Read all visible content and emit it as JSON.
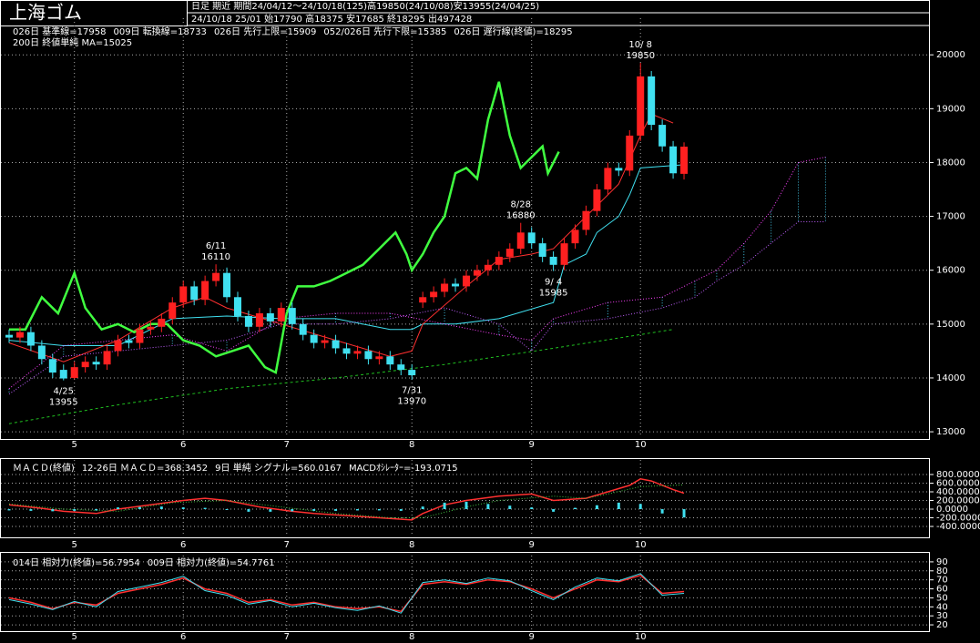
{
  "chart_data": [
    {
      "type": "candlestick",
      "title": "上海ゴム",
      "subtitle": [
        "日足 期近 期間24/04/12～24/10/18(125)高19850(24/10/08)安13955(24/04/25)",
        "24/10/18 25/01 始17790 高18375 安17685 終18295 出497428"
      ],
      "x": [
        0,
        2,
        4,
        6,
        8,
        10,
        12,
        14,
        16,
        18,
        20,
        22,
        24,
        26,
        28,
        30,
        32,
        34,
        36,
        38,
        40,
        42,
        44,
        46,
        48,
        50,
        52,
        54,
        56,
        58,
        60,
        62,
        64,
        66,
        68,
        70,
        72,
        74,
        76,
        78,
        80,
        82,
        84,
        86,
        88,
        90,
        92,
        94,
        96,
        98,
        100,
        102,
        104,
        106,
        108,
        110,
        112,
        114,
        116,
        118,
        120,
        122,
        124
      ],
      "open": [
        14800,
        14750,
        14850,
        14600,
        14350,
        14150,
        14000,
        14200,
        14300,
        14250,
        14500,
        14700,
        14650,
        14900,
        14950,
        15100,
        15400,
        15700,
        15450,
        15800,
        15950,
        15500,
        15150,
        14950,
        15200,
        15050,
        15300,
        15000,
        14800,
        14650,
        14700,
        14550,
        14450,
        14500,
        14350,
        14400,
        14250,
        14150,
        15400,
        15500,
        15600,
        15750,
        15700,
        15900,
        16000,
        16100,
        16250,
        16400,
        16700,
        16500,
        16250,
        16100,
        16500,
        16750,
        17100,
        17500,
        17900,
        17850,
        18500,
        19600,
        18700,
        18300,
        17790
      ],
      "high": [
        14900,
        14950,
        14950,
        14700,
        14450,
        14250,
        14300,
        14400,
        14400,
        14600,
        14800,
        14800,
        15000,
        15050,
        15200,
        15500,
        15800,
        15800,
        15900,
        16110,
        16050,
        15600,
        15250,
        15300,
        15300,
        15400,
        15400,
        15100,
        14900,
        14800,
        14800,
        14650,
        14600,
        14600,
        14500,
        14500,
        14350,
        14250,
        15600,
        15700,
        15850,
        15850,
        16000,
        16100,
        16200,
        16350,
        16500,
        16880,
        16800,
        16600,
        16350,
        16600,
        16850,
        17200,
        17600,
        18000,
        18000,
        18600,
        19850,
        19700,
        18800,
        18400,
        18375
      ],
      "low": [
        14650,
        14650,
        14500,
        14250,
        14000,
        13955,
        13980,
        14100,
        14150,
        14150,
        14400,
        14550,
        14550,
        14800,
        14850,
        15000,
        15300,
        15350,
        15350,
        15700,
        15400,
        15050,
        14850,
        14850,
        14950,
        14950,
        14900,
        14700,
        14550,
        14550,
        14450,
        14350,
        14350,
        14250,
        14250,
        14150,
        14050,
        13970,
        15300,
        15400,
        15500,
        15600,
        15600,
        15800,
        15900,
        16000,
        16150,
        16300,
        16400,
        16150,
        15985,
        16000,
        16400,
        16650,
        17000,
        17400,
        17750,
        17750,
        18400,
        18600,
        18200,
        17700,
        17685
      ],
      "close": [
        14750,
        14850,
        14600,
        14350,
        14100,
        13990,
        14200,
        14300,
        14250,
        14500,
        14700,
        14650,
        14900,
        14950,
        15100,
        15400,
        15700,
        15450,
        15800,
        15950,
        15500,
        15150,
        14950,
        15200,
        15050,
        15300,
        15000,
        14800,
        14650,
        14700,
        14550,
        14450,
        14500,
        14350,
        14400,
        14250,
        14150,
        14050,
        15500,
        15600,
        15750,
        15700,
        15900,
        16000,
        16100,
        16250,
        16400,
        16700,
        16500,
        16250,
        16100,
        16500,
        16750,
        17100,
        17500,
        17900,
        17850,
        18500,
        19600,
        18700,
        18300,
        17800,
        18295
      ],
      "up_color": "#ff2020",
      "down_color": "#40e0f0",
      "xlim": [
        0,
        167
      ],
      "xticks": [
        {
          "value": 12,
          "label": "5"
        },
        {
          "value": 32,
          "label": "6"
        },
        {
          "value": 51,
          "label": "7"
        },
        {
          "value": 74,
          "label": "8"
        },
        {
          "value": 96,
          "label": "9"
        },
        {
          "value": 116,
          "label": "10"
        }
      ],
      "ylim": [
        12900,
        20680
      ],
      "yticks": [
        13000,
        14000,
        15000,
        16000,
        17000,
        18000,
        19000,
        20000
      ],
      "grid": true,
      "series": [
        {
          "name": "026日 基準線=17958",
          "color": "#40e0f0",
          "x": [
            0,
            10,
            20,
            30,
            40,
            50,
            60,
            70,
            74,
            76,
            82,
            90,
            100,
            102,
            106,
            108,
            112,
            114,
            116,
            124
          ],
          "values": [
            14700,
            14600,
            14600,
            15100,
            15150,
            15100,
            15100,
            14900,
            14900,
            15000,
            15000,
            15100,
            15400,
            16100,
            16300,
            16700,
            17000,
            17400,
            17900,
            17958
          ]
        },
        {
          "name": "009日 転換線=18733",
          "color": "#ff3030",
          "x": [
            0,
            10,
            20,
            30,
            36,
            40,
            50,
            60,
            70,
            74,
            76,
            84,
            90,
            96,
            100,
            106,
            112,
            116,
            118,
            122
          ],
          "values": [
            14650,
            14300,
            14700,
            15300,
            15500,
            15300,
            15000,
            14700,
            14400,
            14500,
            15000,
            15700,
            16200,
            16300,
            16400,
            17000,
            17600,
            18500,
            18900,
            18733
          ]
        },
        {
          "name": "026日 先行上限=15909",
          "color": "#ff40ff",
          "style": "dotted",
          "cloud": true,
          "x": [
            0,
            10,
            20,
            30,
            40,
            50,
            60,
            70,
            80,
            90,
            96,
            100,
            110,
            120,
            126,
            130,
            135,
            140,
            145,
            150
          ],
          "values": [
            13800,
            14600,
            14700,
            14800,
            14500,
            15100,
            15200,
            15200,
            15000,
            14800,
            14700,
            15100,
            15400,
            15500,
            15800,
            16000,
            16500,
            17100,
            18000,
            18100
          ]
        },
        {
          "name": "052/026日 先行下限=15385",
          "color": "#c060ff",
          "style": "dotted",
          "cloud": true,
          "x": [
            0,
            10,
            20,
            30,
            40,
            50,
            60,
            70,
            80,
            90,
            96,
            100,
            110,
            120,
            126,
            130,
            135,
            140,
            145,
            150
          ],
          "values": [
            13700,
            14400,
            14500,
            14600,
            14700,
            15000,
            15000,
            15100,
            15300,
            15000,
            14500,
            15000,
            15100,
            15300,
            15500,
            15800,
            16100,
            16500,
            16900,
            16900
          ]
        },
        {
          "name": "026日 遅行線(終値)=18295",
          "color": "#40ff40",
          "width": 2.5,
          "x": [
            0,
            3,
            6,
            9,
            12,
            14,
            17,
            20,
            23,
            26,
            29,
            32,
            35,
            38,
            41,
            44,
            47,
            49,
            51,
            53,
            56,
            59,
            62,
            65,
            68,
            71,
            73,
            74,
            76,
            78,
            80,
            82,
            84,
            86,
            88,
            90,
            92,
            94,
            96,
            98,
            99,
            101
          ],
          "values": [
            14900,
            14900,
            15500,
            15200,
            15950,
            15300,
            14900,
            15000,
            14850,
            15000,
            15000,
            14700,
            14600,
            14400,
            14500,
            14600,
            14200,
            14100,
            15200,
            15700,
            15700,
            15800,
            15950,
            16100,
            16400,
            16700,
            16300,
            16000,
            16300,
            16700,
            17000,
            17800,
            17900,
            17700,
            18800,
            19500,
            18500,
            17900,
            18100,
            18300,
            17800,
            18200
          ]
        },
        {
          "name": "200日 終値単純 MA=15025",
          "color": "#20c020",
          "style": "dashed",
          "x": [
            0,
            20,
            40,
            60,
            80,
            100,
            122
          ],
          "values": [
            13150,
            13500,
            13800,
            14000,
            14250,
            14550,
            14900
          ]
        }
      ],
      "annotations": [
        {
          "date": "4/25",
          "value": 13955,
          "x": 10,
          "position": "below"
        },
        {
          "date": "6/11",
          "value": 16110,
          "x": 38,
          "position": "above"
        },
        {
          "date": "7/31",
          "value": 13970,
          "x": 74,
          "position": "below"
        },
        {
          "date": "8/28",
          "value": 16880,
          "x": 94,
          "position": "above"
        },
        {
          "date": "9/ 4",
          "value": 15985,
          "x": 100,
          "position": "below"
        },
        {
          "date": "10/ 8",
          "value": 19850,
          "x": 116,
          "position": "above"
        }
      ]
    },
    {
      "type": "macd",
      "title": "ＭＡＣＤ(終値)",
      "ylim": [
        -610,
        1137
      ],
      "yticks": [
        {
          "value": 800,
          "label": "800.0000"
        },
        {
          "value": 600,
          "label": "600.0000"
        },
        {
          "value": 400,
          "label": "400.0000"
        },
        {
          "value": 200,
          "label": "200.0000"
        },
        {
          "value": 0,
          "label": "0.0000"
        },
        {
          "value": -200,
          "label": "-200.0000"
        },
        {
          "value": -400,
          "label": "-400.0000"
        }
      ],
      "grid": true,
      "series": [
        {
          "name": "12-26日 ＭＡＣＤ=368.3452",
          "color": "#ff3030",
          "width": 1.5,
          "x": [
            0,
            6,
            10,
            16,
            20,
            26,
            32,
            36,
            40,
            46,
            52,
            56,
            62,
            68,
            74,
            76,
            80,
            84,
            90,
            96,
            100,
            106,
            110,
            114,
            116,
            118,
            122,
            124
          ],
          "values": [
            100,
            20,
            -50,
            -100,
            0,
            100,
            200,
            250,
            200,
            50,
            -50,
            -100,
            -150,
            -200,
            -250,
            -100,
            100,
            200,
            300,
            350,
            200,
            250,
            400,
            550,
            700,
            650,
            450,
            368.3452
          ]
        },
        {
          "name": "9日 単純 シグナル=560.0167",
          "color": "#40c040",
          "style": "dotted",
          "x": [
            0,
            10,
            20,
            30,
            40,
            50,
            60,
            70,
            76,
            84,
            90,
            100,
            106,
            110,
            116,
            124
          ],
          "values": [
            120,
            0,
            -50,
            150,
            200,
            50,
            -100,
            -200,
            -200,
            50,
            200,
            300,
            250,
            350,
            520,
            560.0167
          ]
        },
        {
          "name": "MACDｵｼﾚｰﾀｰ=-193.0715",
          "color": "#40e0f0",
          "kind": "bar",
          "x": [
            0,
            4,
            8,
            12,
            16,
            20,
            24,
            28,
            32,
            36,
            40,
            44,
            48,
            52,
            56,
            60,
            64,
            68,
            72,
            76,
            80,
            84,
            88,
            92,
            96,
            100,
            104,
            108,
            112,
            116,
            120,
            124
          ],
          "values": [
            -30,
            -40,
            -50,
            -40,
            -30,
            40,
            50,
            60,
            40,
            30,
            -20,
            -60,
            -60,
            -50,
            -40,
            -40,
            -30,
            -30,
            -40,
            60,
            150,
            170,
            120,
            80,
            40,
            -60,
            30,
            90,
            150,
            120,
            -100,
            -193.0715
          ]
        }
      ]
    },
    {
      "type": "line",
      "ylim": [
        14,
        97
      ],
      "yticks": [
        20,
        30,
        40,
        50,
        60,
        70,
        80,
        90
      ],
      "grid": true,
      "series": [
        {
          "name": "014日 相対力(終値)=56.7954",
          "color": "#ff3030",
          "width": 1.5,
          "x": [
            0,
            4,
            8,
            12,
            16,
            20,
            24,
            28,
            32,
            36,
            40,
            44,
            48,
            52,
            56,
            60,
            64,
            68,
            72,
            76,
            80,
            84,
            88,
            92,
            96,
            100,
            104,
            108,
            112,
            116,
            120,
            124
          ],
          "values": [
            50,
            45,
            38,
            45,
            42,
            55,
            60,
            65,
            72,
            60,
            55,
            45,
            48,
            42,
            45,
            40,
            38,
            40,
            35,
            65,
            68,
            65,
            70,
            68,
            60,
            50,
            60,
            70,
            68,
            75,
            55,
            57
          ]
        },
        {
          "name": "009日 相対力(終値)=54.7761",
          "color": "#40e0f0",
          "x": [
            0,
            4,
            8,
            12,
            16,
            20,
            24,
            28,
            32,
            36,
            40,
            44,
            48,
            52,
            56,
            60,
            64,
            68,
            72,
            76,
            80,
            84,
            88,
            92,
            96,
            100,
            104,
            108,
            112,
            116,
            120,
            124
          ],
          "values": [
            48,
            43,
            37,
            46,
            40,
            57,
            62,
            67,
            74,
            58,
            53,
            43,
            47,
            40,
            44,
            39,
            36,
            41,
            33,
            67,
            70,
            66,
            72,
            69,
            58,
            48,
            62,
            72,
            69,
            77,
            53,
            55
          ]
        }
      ]
    }
  ]
}
